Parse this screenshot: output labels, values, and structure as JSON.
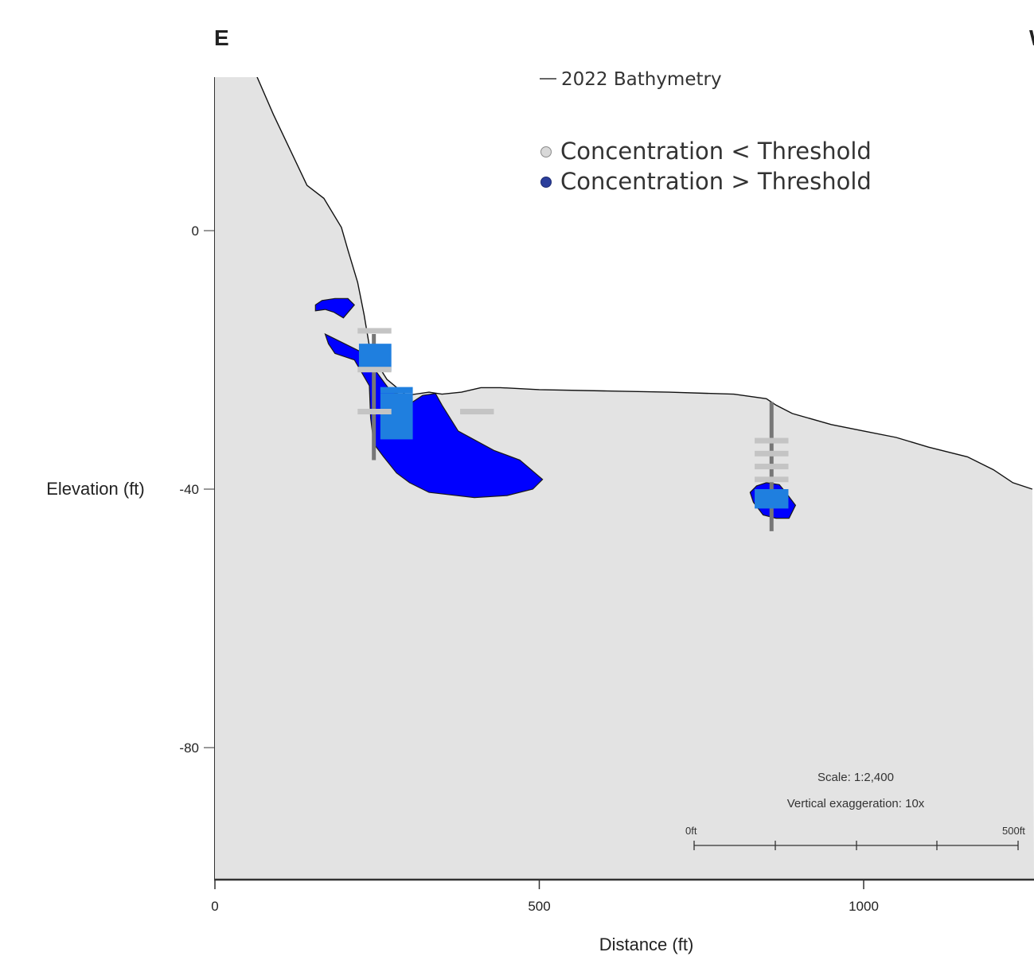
{
  "chart_data": {
    "type": "cross-section",
    "ends": {
      "left": "E",
      "right": "W"
    },
    "xlabel": "Distance (ft)",
    "ylabel": "Elevation (ft)",
    "xlim": [
      0,
      1260
    ],
    "ylim": [
      -100,
      24
    ],
    "x_ticks": [
      {
        "v": 0,
        "label": "0"
      },
      {
        "v": 500,
        "label": "500"
      },
      {
        "v": 1000,
        "label": "1000"
      }
    ],
    "y_ticks": [
      {
        "v": 0,
        "label": "0"
      },
      {
        "v": -40,
        "label": "-40"
      },
      {
        "v": -80,
        "label": "-80"
      }
    ],
    "bathymetry": {
      "label": "2022 Bathymetry",
      "color": "#111111",
      "points": [
        [
          64,
          24
        ],
        [
          90,
          18
        ],
        [
          142,
          7
        ],
        [
          168,
          5
        ],
        [
          195,
          0.5
        ],
        [
          205,
          -3
        ],
        [
          220,
          -8
        ],
        [
          230,
          -13
        ],
        [
          240,
          -19
        ],
        [
          265,
          -23
        ],
        [
          295,
          -25.5
        ],
        [
          330,
          -25
        ],
        [
          350,
          -25.3
        ],
        [
          380,
          -25
        ],
        [
          410,
          -24.3
        ],
        [
          440,
          -24.3
        ],
        [
          500,
          -24.6
        ],
        [
          600,
          -24.8
        ],
        [
          700,
          -25
        ],
        [
          800,
          -25.3
        ],
        [
          850,
          -26
        ],
        [
          865,
          -27
        ],
        [
          890,
          -28.3
        ],
        [
          950,
          -30
        ],
        [
          1000,
          -31
        ],
        [
          1050,
          -32
        ],
        [
          1100,
          -33.5
        ],
        [
          1160,
          -35
        ],
        [
          1200,
          -37
        ],
        [
          1230,
          -39
        ],
        [
          1260,
          -40
        ]
      ]
    },
    "ground_fill": "#e3e3e3",
    "legend": [
      {
        "label": "Concentration < Threshold",
        "color": "#d9d9d9"
      },
      {
        "label": "Concentration > Threshold",
        "color": "#2b3f9c"
      }
    ],
    "plumes": [
      {
        "color": "#0000ff",
        "points": [
          [
            155,
            -11.5
          ],
          [
            165,
            -10.8
          ],
          [
            185,
            -10.5
          ],
          [
            205,
            -10.5
          ],
          [
            215,
            -11.5
          ],
          [
            198,
            -13.5
          ],
          [
            183,
            -12.6
          ],
          [
            170,
            -12.2
          ],
          [
            155,
            -12.4
          ]
        ]
      },
      {
        "color": "#0000ff",
        "points": [
          [
            170,
            -16
          ],
          [
            200,
            -17.5
          ],
          [
            230,
            -19
          ],
          [
            250,
            -22
          ],
          [
            272,
            -25
          ],
          [
            290,
            -25.5
          ],
          [
            305,
            -26.5
          ],
          [
            320,
            -25.5
          ],
          [
            340,
            -25.2
          ],
          [
            350,
            -27
          ],
          [
            375,
            -31
          ],
          [
            430,
            -34
          ],
          [
            470,
            -35.5
          ],
          [
            505,
            -38.5
          ],
          [
            490,
            -40
          ],
          [
            450,
            -41
          ],
          [
            400,
            -41.3
          ],
          [
            330,
            -40.5
          ],
          [
            300,
            -39
          ],
          [
            280,
            -37.5
          ],
          [
            260,
            -35
          ],
          [
            245,
            -33
          ],
          [
            240,
            -29
          ],
          [
            238,
            -24
          ],
          [
            215,
            -20
          ],
          [
            185,
            -19
          ],
          [
            175,
            -17.5
          ]
        ]
      },
      {
        "color": "#0000ff",
        "points": [
          [
            825,
            -40.5
          ],
          [
            835,
            -39.5
          ],
          [
            850,
            -39
          ],
          [
            870,
            -39.3
          ],
          [
            880,
            -40.5
          ],
          [
            895,
            -42.5
          ],
          [
            885,
            -44.5
          ],
          [
            865,
            -44.5
          ],
          [
            845,
            -44
          ],
          [
            830,
            -42
          ]
        ]
      }
    ],
    "wells": [
      {
        "x": 245,
        "top": -16,
        "bottom": -35.5
      },
      {
        "x": 858,
        "top": -26.5,
        "bottom": -46.5
      }
    ],
    "samples_below": [
      {
        "x1": 220,
        "x2": 272,
        "y": -15.5
      },
      {
        "x1": 220,
        "x2": 272,
        "y": -21.5
      },
      {
        "x1": 220,
        "x2": 272,
        "y": -28
      },
      {
        "x1": 378,
        "x2": 430,
        "y": -28
      },
      {
        "x1": 832,
        "x2": 884,
        "y": -32.5
      },
      {
        "x1": 832,
        "x2": 884,
        "y": -34.5
      },
      {
        "x1": 832,
        "x2": 884,
        "y": -36.5
      },
      {
        "x1": 832,
        "x2": 884,
        "y": -38.5
      }
    ],
    "samples_above": [
      {
        "x1": 222,
        "x2": 272,
        "y_top": -17.5,
        "y_bottom": -21.7
      },
      {
        "x1": 255,
        "x2": 305,
        "y_top": -24.2,
        "y_bottom": -25.2
      },
      {
        "x1": 255,
        "x2": 305,
        "y_top": -25.2,
        "y_bottom": -32.3
      },
      {
        "x1": 832,
        "x2": 884,
        "y_top": -40,
        "y_bottom": -43
      }
    ],
    "scale_bar": {
      "scale_text": "Scale: 1:2,400",
      "exaggeration_text": "Vertical exaggeration: 10x",
      "start_label": "0ft",
      "end_label": "500ft"
    }
  }
}
